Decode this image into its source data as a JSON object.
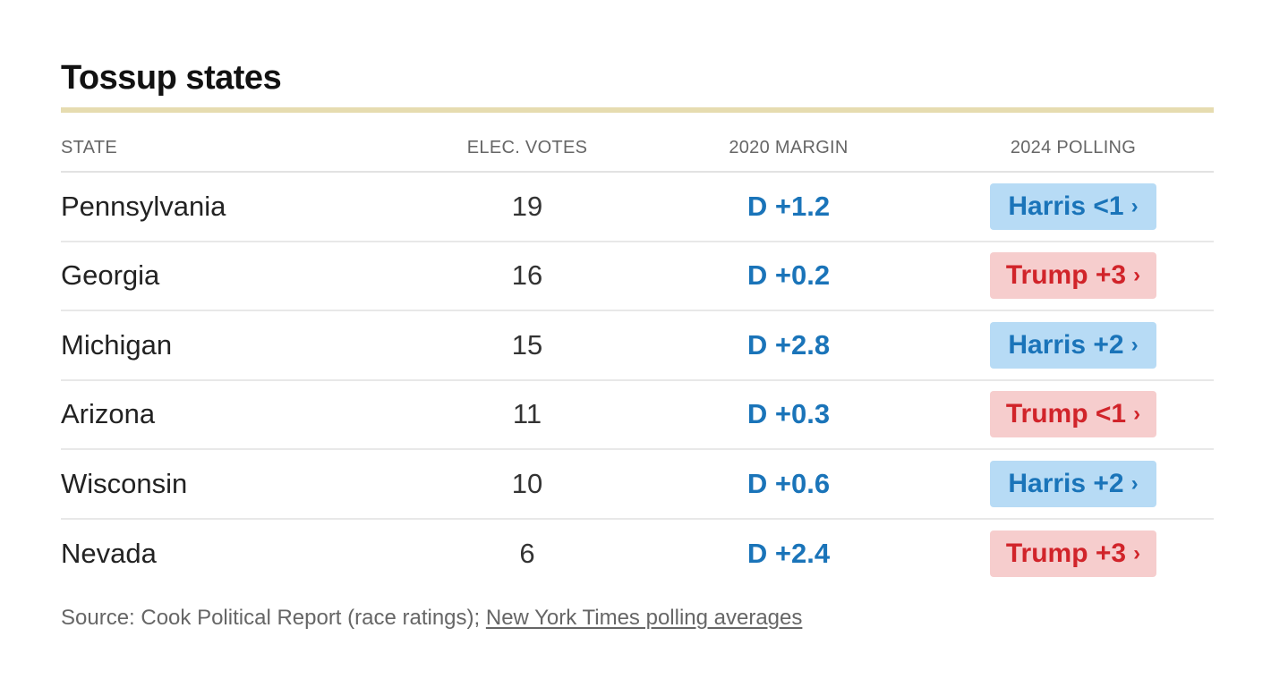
{
  "title": "Tossup states",
  "columns": {
    "state": "STATE",
    "votes": "ELEC. VOTES",
    "margin": "2020 MARGIN",
    "polling": "2024 POLLING"
  },
  "colors": {
    "dem_text": "#1a74b9",
    "dem_bg": "#b7dbf5",
    "rep_text": "#d1242a",
    "rep_bg": "#f6cdcd",
    "rule": "#e6dcb0"
  },
  "rows": [
    {
      "state": "Pennsylvania",
      "votes": "19",
      "margin": "D +1.2",
      "polling": "Harris <1",
      "party": "dem",
      "chevron": "›"
    },
    {
      "state": "Georgia",
      "votes": "16",
      "margin": "D +0.2",
      "polling": "Trump +3",
      "party": "rep",
      "chevron": "›"
    },
    {
      "state": "Michigan",
      "votes": "15",
      "margin": "D +2.8",
      "polling": "Harris +2",
      "party": "dem",
      "chevron": "›"
    },
    {
      "state": "Arizona",
      "votes": "11",
      "margin": "D +0.3",
      "polling": "Trump <1",
      "party": "rep",
      "chevron": "›"
    },
    {
      "state": "Wisconsin",
      "votes": "10",
      "margin": "D +0.6",
      "polling": "Harris +2",
      "party": "dem",
      "chevron": "›"
    },
    {
      "state": "Nevada",
      "votes": "6",
      "margin": "D +2.4",
      "polling": "Trump +3",
      "party": "rep",
      "chevron": "›"
    }
  ],
  "source": {
    "prefix": "Source: Cook Political Report (race ratings); ",
    "link_text": "New York Times polling averages"
  }
}
